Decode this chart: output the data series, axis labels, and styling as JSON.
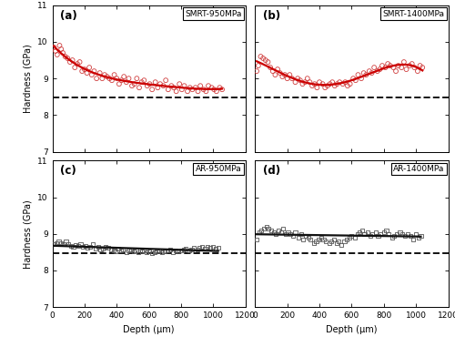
{
  "panels": [
    {
      "label": "(a)",
      "legend": "SMRT-950MPa",
      "marker": "o",
      "marker_color": "#d04040",
      "marker_size": 3.5,
      "fit_color": "#cc0000",
      "fit_degree": 4,
      "dashed_y": 8.48,
      "ylim": [
        7,
        11
      ],
      "xlim": [
        0,
        1200
      ],
      "xticks": [
        0,
        200,
        400,
        600,
        800,
        1000,
        1200
      ],
      "yticks": [
        7,
        8,
        9,
        10,
        11
      ],
      "scatter_x": [
        10,
        20,
        30,
        45,
        55,
        65,
        80,
        95,
        110,
        125,
        140,
        155,
        170,
        185,
        200,
        215,
        230,
        245,
        260,
        275,
        295,
        310,
        325,
        340,
        355,
        370,
        385,
        400,
        415,
        430,
        445,
        460,
        475,
        495,
        510,
        525,
        540,
        555,
        570,
        590,
        605,
        620,
        640,
        655,
        670,
        690,
        705,
        720,
        740,
        755,
        770,
        790,
        805,
        820,
        840,
        855,
        870,
        890,
        905,
        920,
        940,
        955,
        970,
        990,
        1005,
        1020,
        1040,
        1055
      ],
      "scatter_y": [
        9.85,
        9.75,
        9.65,
        9.9,
        9.8,
        9.7,
        9.6,
        9.55,
        9.45,
        9.5,
        9.3,
        9.4,
        9.45,
        9.2,
        9.25,
        9.15,
        9.3,
        9.1,
        9.2,
        9.0,
        9.15,
        9.0,
        9.1,
        9.05,
        9.0,
        8.95,
        9.1,
        9.0,
        8.85,
        8.95,
        9.05,
        8.9,
        9.0,
        8.8,
        8.85,
        9.0,
        8.75,
        8.9,
        8.95,
        8.8,
        8.85,
        8.7,
        8.9,
        8.75,
        8.85,
        8.8,
        8.95,
        8.7,
        8.8,
        8.75,
        8.65,
        8.85,
        8.7,
        8.8,
        8.65,
        8.75,
        8.7,
        8.75,
        8.65,
        8.8,
        8.7,
        8.65,
        8.8,
        8.75,
        8.7,
        8.65,
        8.75,
        8.7
      ]
    },
    {
      "label": "(b)",
      "legend": "SMRT-1400MPa",
      "marker": "o",
      "marker_color": "#d04040",
      "marker_size": 3.5,
      "fit_color": "#cc0000",
      "fit_degree": 4,
      "dashed_y": 8.48,
      "ylim": [
        7,
        11
      ],
      "xlim": [
        0,
        1200
      ],
      "xticks": [
        0,
        200,
        400,
        600,
        800,
        1000,
        1200
      ],
      "yticks": [
        7,
        8,
        9,
        10,
        11
      ],
      "scatter_x": [
        10,
        20,
        35,
        50,
        65,
        80,
        95,
        110,
        125,
        140,
        155,
        170,
        185,
        200,
        215,
        230,
        250,
        265,
        280,
        295,
        310,
        325,
        340,
        355,
        370,
        385,
        400,
        420,
        435,
        450,
        465,
        480,
        495,
        510,
        525,
        545,
        560,
        575,
        590,
        610,
        625,
        640,
        660,
        675,
        690,
        710,
        725,
        740,
        760,
        775,
        790,
        810,
        825,
        840,
        860,
        875,
        890,
        910,
        925,
        940,
        960,
        975,
        990,
        1010,
        1025,
        1040
      ],
      "scatter_y": [
        9.2,
        9.35,
        9.6,
        9.55,
        9.5,
        9.45,
        9.3,
        9.2,
        9.1,
        9.25,
        9.15,
        9.05,
        9.1,
        9.0,
        9.1,
        9.0,
        8.9,
        9.0,
        8.95,
        8.85,
        8.9,
        9.0,
        8.9,
        8.8,
        8.85,
        8.75,
        8.9,
        8.85,
        8.75,
        8.8,
        8.85,
        8.9,
        8.8,
        8.85,
        8.9,
        8.85,
        8.9,
        8.8,
        8.85,
        9.0,
        8.95,
        9.1,
        9.0,
        9.15,
        9.1,
        9.2,
        9.15,
        9.3,
        9.2,
        9.25,
        9.35,
        9.3,
        9.4,
        9.35,
        9.3,
        9.2,
        9.35,
        9.3,
        9.45,
        9.25,
        9.35,
        9.4,
        9.3,
        9.2,
        9.35,
        9.3
      ]
    },
    {
      "label": "(c)",
      "legend": "AR-950MPa",
      "marker": "s",
      "marker_color": "#555555",
      "marker_size": 3.0,
      "fit_color": "#111111",
      "fit_degree": 1,
      "dashed_y": 8.48,
      "ylim": [
        7,
        11
      ],
      "xlim": [
        0,
        1200
      ],
      "xticks": [
        0,
        200,
        400,
        600,
        800,
        1000,
        1200
      ],
      "yticks": [
        7,
        8,
        9,
        10,
        11
      ],
      "scatter_x": [
        10,
        25,
        40,
        55,
        70,
        85,
        100,
        115,
        130,
        145,
        160,
        175,
        190,
        205,
        220,
        235,
        250,
        270,
        285,
        300,
        315,
        330,
        345,
        365,
        380,
        395,
        410,
        425,
        440,
        460,
        475,
        490,
        505,
        520,
        535,
        555,
        570,
        585,
        600,
        620,
        635,
        650,
        665,
        680,
        700,
        715,
        730,
        750,
        765,
        780,
        800,
        815,
        830,
        850,
        865,
        880,
        900,
        915,
        930,
        950,
        965,
        980,
        1000,
        1015,
        1030
      ],
      "scatter_y": [
        8.73,
        8.75,
        8.78,
        8.75,
        8.73,
        8.78,
        8.72,
        8.68,
        8.65,
        8.7,
        8.68,
        8.72,
        8.65,
        8.68,
        8.63,
        8.65,
        8.72,
        8.6,
        8.65,
        8.58,
        8.6,
        8.65,
        8.62,
        8.58,
        8.55,
        8.52,
        8.6,
        8.55,
        8.58,
        8.5,
        8.55,
        8.58,
        8.52,
        8.55,
        8.5,
        8.52,
        8.55,
        8.5,
        8.52,
        8.48,
        8.5,
        8.52,
        8.55,
        8.5,
        8.52,
        8.55,
        8.58,
        8.5,
        8.55,
        8.52,
        8.55,
        8.58,
        8.6,
        8.55,
        8.58,
        8.62,
        8.58,
        8.62,
        8.65,
        8.6,
        8.65,
        8.62,
        8.65,
        8.6,
        8.63
      ]
    },
    {
      "label": "(d)",
      "legend": "AR-1400MPa",
      "marker": "s",
      "marker_color": "#555555",
      "marker_size": 3.0,
      "fit_color": "#111111",
      "fit_degree": 1,
      "dashed_y": 8.48,
      "ylim": [
        7,
        11
      ],
      "xlim": [
        0,
        1200
      ],
      "xticks": [
        0,
        200,
        400,
        600,
        800,
        1000,
        1200
      ],
      "yticks": [
        7,
        8,
        9,
        10,
        11
      ],
      "scatter_x": [
        10,
        25,
        40,
        55,
        70,
        85,
        100,
        115,
        130,
        145,
        160,
        175,
        190,
        205,
        220,
        235,
        250,
        270,
        285,
        300,
        315,
        330,
        345,
        365,
        380,
        395,
        410,
        425,
        440,
        460,
        475,
        490,
        505,
        520,
        535,
        555,
        570,
        585,
        600,
        620,
        635,
        650,
        665,
        680,
        700,
        715,
        730,
        750,
        765,
        780,
        800,
        815,
        830,
        850,
        865,
        880,
        900,
        915,
        930,
        950,
        965,
        980,
        1000,
        1015,
        1030
      ],
      "scatter_y": [
        8.85,
        9.05,
        9.1,
        9.15,
        9.2,
        9.15,
        9.1,
        9.05,
        9.0,
        9.1,
        9.05,
        9.15,
        9.0,
        9.05,
        9.0,
        8.95,
        9.05,
        8.9,
        9.0,
        8.85,
        8.95,
        8.9,
        8.85,
        8.75,
        8.8,
        8.85,
        8.9,
        8.85,
        8.8,
        8.75,
        8.8,
        8.85,
        8.75,
        8.8,
        8.7,
        8.8,
        8.85,
        8.9,
        8.95,
        8.9,
        9.0,
        9.05,
        9.1,
        9.0,
        9.05,
        8.95,
        9.0,
        9.05,
        8.95,
        9.0,
        9.05,
        9.1,
        9.0,
        8.9,
        8.95,
        9.0,
        9.05,
        9.0,
        8.95,
        9.0,
        8.95,
        8.85,
        9.0,
        8.9,
        8.95
      ]
    }
  ],
  "xlabel": "Depth (μm)",
  "ylabel": "Hardness (GPa)",
  "dashed_color": "#111111",
  "dashed_linewidth": 1.4,
  "fit_linewidth": 1.6,
  "background_color": "#ffffff"
}
